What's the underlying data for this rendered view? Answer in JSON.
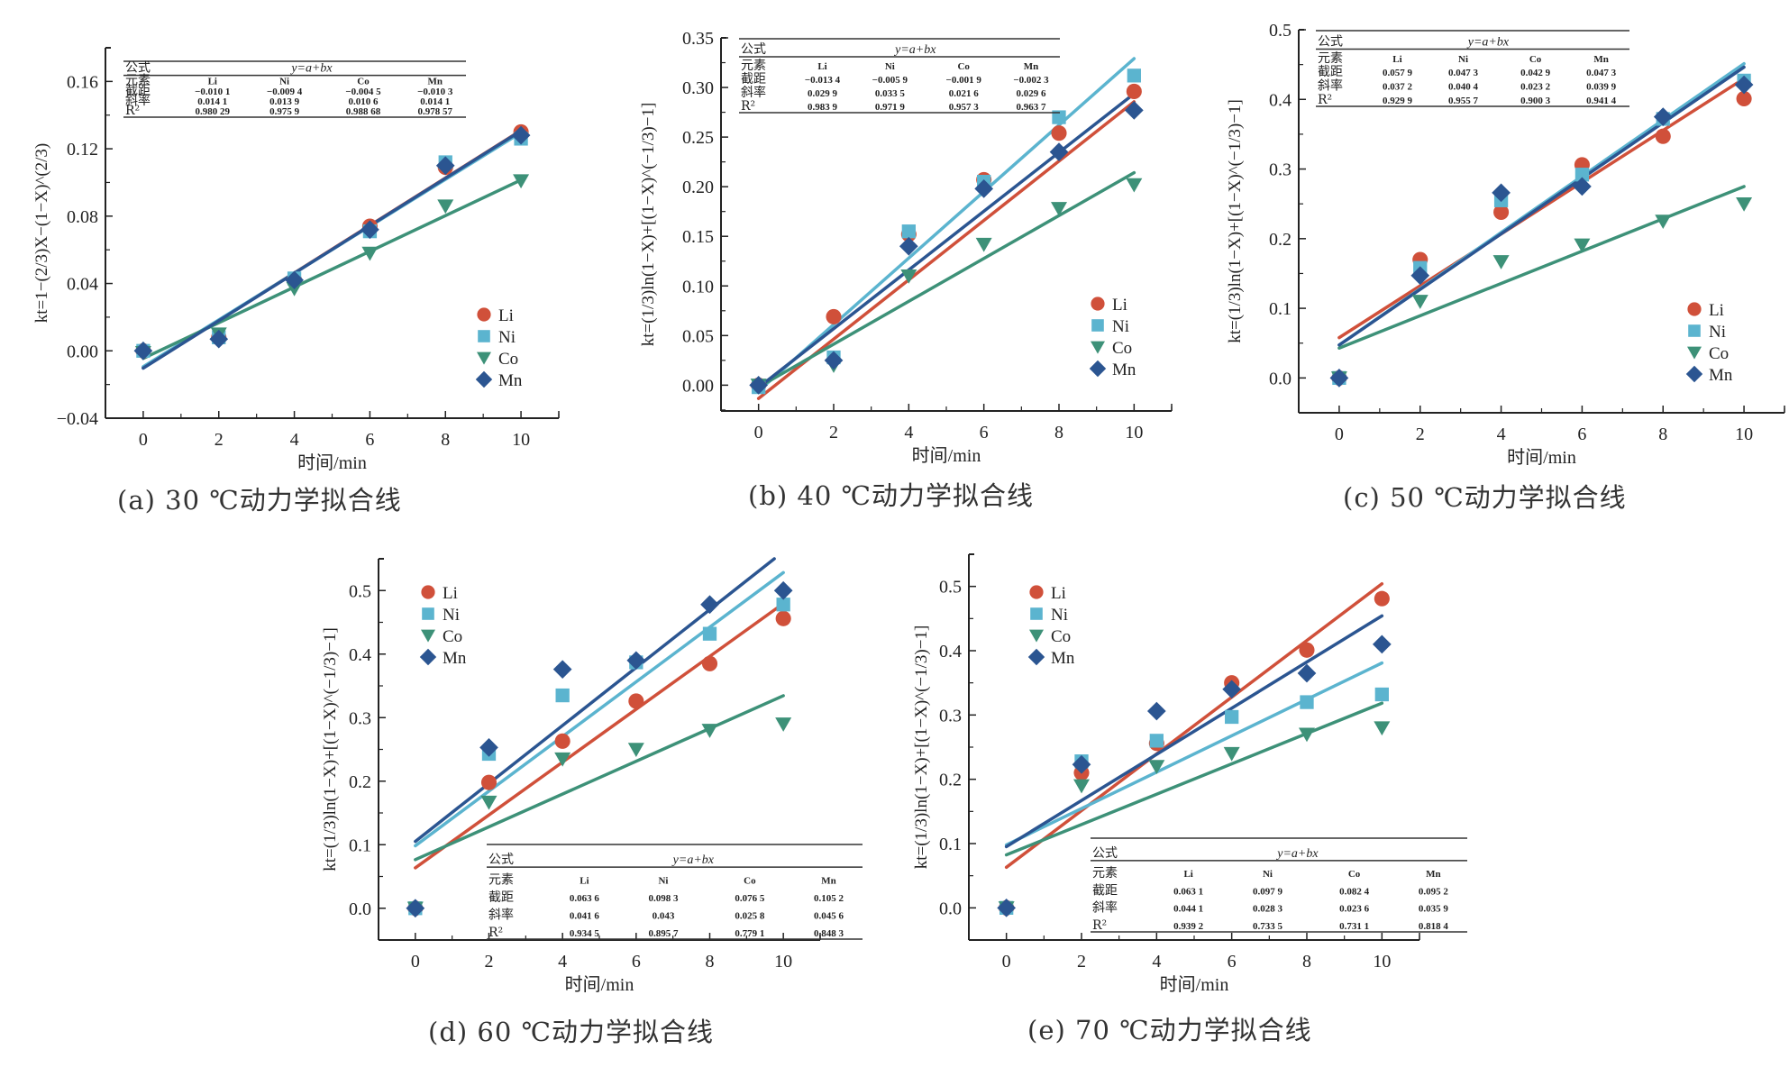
{
  "colors": {
    "Li": "#d0503a",
    "Ni": "#5bb4cf",
    "Co": "#3d9178",
    "Mn": "#2b5591",
    "axis": "#222222"
  },
  "chart_data": [
    {
      "id": "a",
      "type": "scatter",
      "caption": "(a) 30 ℃动力学拟合线",
      "xlabel": "时间/min",
      "ylabel": "kt=1−(2/3)X−(1−X)^(2/3)",
      "x": [
        0,
        2,
        4,
        6,
        8,
        10
      ],
      "xticks": [
        "0",
        "2",
        "4",
        "6",
        "8",
        "10"
      ],
      "xlim": [
        -1,
        11
      ],
      "ylim": [
        -0.04,
        0.18
      ],
      "yticks": [
        -0.04,
        0.0,
        0.04,
        0.08,
        0.12,
        0.16
      ],
      "ytick_labels": [
        "−0.04",
        "0.00",
        "0.04",
        "0.08",
        "0.12",
        "0.16"
      ],
      "legend_position": "bottom-right",
      "table_position": "top",
      "series": [
        {
          "name": "Li",
          "marker": "circle",
          "values": [
            0.0,
            0.008,
            0.042,
            0.074,
            0.109,
            0.13
          ],
          "fit": {
            "intercept": -0.0101,
            "slope": 0.0141,
            "r2": "0.980 29"
          }
        },
        {
          "name": "Ni",
          "marker": "square",
          "values": [
            0.0,
            0.008,
            0.043,
            0.071,
            0.112,
            0.126
          ],
          "fit": {
            "intercept": -0.0094,
            "slope": 0.0139,
            "r2": "0.975 9"
          }
        },
        {
          "name": "Co",
          "marker": "triangle",
          "values": [
            -0.001,
            0.01,
            0.037,
            0.058,
            0.086,
            0.101
          ],
          "fit": {
            "intercept": -0.0045,
            "slope": 0.0106,
            "r2": "0.988 68"
          }
        },
        {
          "name": "Mn",
          "marker": "diamond",
          "values": [
            0.0,
            0.007,
            0.042,
            0.072,
            0.11,
            0.128
          ],
          "fit": {
            "intercept": -0.0103,
            "slope": 0.0141,
            "r2": "0.978 57"
          }
        }
      ],
      "table": {
        "formula_label": "公式",
        "formula": "y=a+bx",
        "rows": [
          {
            "label": "元素",
            "values": [
              "Li",
              "Ni",
              "Co",
              "Mn"
            ]
          },
          {
            "label": "截距",
            "values": [
              "−0.010 1",
              "−0.009 4",
              "−0.004 5",
              "−0.010 3"
            ]
          },
          {
            "label": "斜率",
            "values": [
              "0.014 1",
              "0.013 9",
              "0.010 6",
              "0.014 1"
            ]
          },
          {
            "label": "R²",
            "values": [
              "0.980 29",
              "0.975 9",
              "0.988 68",
              "0.978 57"
            ]
          }
        ]
      }
    },
    {
      "id": "b",
      "type": "scatter",
      "caption": "(b) 40 ℃动力学拟合线",
      "xlabel": "时间/min",
      "ylabel": "kt=(1/3)ln(1−X)+[(1−X)^(−1/3)−1]",
      "x": [
        0,
        2,
        4,
        6,
        8,
        10
      ],
      "xticks": [
        "0",
        "2",
        "4",
        "6",
        "8",
        "10"
      ],
      "xlim": [
        -1,
        11
      ],
      "ylim": [
        -0.026,
        0.35
      ],
      "yticks": [
        0.0,
        0.05,
        0.1,
        0.15,
        0.2,
        0.25,
        0.3,
        0.35
      ],
      "ytick_labels": [
        "0.00",
        "0.05",
        "0.10",
        "0.15",
        "0.20",
        "0.25",
        "0.30",
        "0.35"
      ],
      "legend_position": "bottom-right",
      "table_position": "top",
      "series": [
        {
          "name": "Li",
          "marker": "circle",
          "values": [
            0.0,
            0.069,
            0.152,
            0.207,
            0.254,
            0.296
          ],
          "fit": {
            "intercept": -0.0134,
            "slope": 0.0299,
            "r2": "0.983 9"
          }
        },
        {
          "name": "Ni",
          "marker": "square",
          "values": [
            -0.002,
            0.028,
            0.155,
            0.205,
            0.27,
            0.312
          ],
          "fit": {
            "intercept": -0.0059,
            "slope": 0.0335,
            "r2": "0.971 9"
          }
        },
        {
          "name": "Co",
          "marker": "triangle",
          "values": [
            0.0,
            0.02,
            0.11,
            0.142,
            0.178,
            0.202
          ],
          "fit": {
            "intercept": -0.0019,
            "slope": 0.0216,
            "r2": "0.957 3"
          }
        },
        {
          "name": "Mn",
          "marker": "diamond",
          "values": [
            0.0,
            0.025,
            0.14,
            0.198,
            0.235,
            0.277
          ],
          "fit": {
            "intercept": -0.0023,
            "slope": 0.0296,
            "r2": "0.963 7"
          }
        }
      ],
      "table": {
        "formula_label": "公式",
        "formula": "y=a+bx",
        "rows": [
          {
            "label": "元素",
            "values": [
              "Li",
              "Ni",
              "Co",
              "Mn"
            ]
          },
          {
            "label": "截距",
            "values": [
              "−0.013 4",
              "−0.005 9",
              "−0.001 9",
              "−0.002 3"
            ]
          },
          {
            "label": "斜率",
            "values": [
              "0.029 9",
              "0.033 5",
              "0.021 6",
              "0.029 6"
            ]
          },
          {
            "label": "R²",
            "values": [
              "0.983 9",
              "0.971 9",
              "0.957 3",
              "0.963 7"
            ]
          }
        ]
      }
    },
    {
      "id": "c",
      "type": "scatter",
      "caption": "(c) 50 ℃动力学拟合线",
      "xlabel": "时间/min",
      "ylabel": "kt=(1/3)ln(1−X)+[(1−X)^(−1/3)−1]",
      "x": [
        0,
        2,
        4,
        6,
        8,
        10
      ],
      "xticks": [
        "0",
        "2",
        "4",
        "6",
        "8",
        "10"
      ],
      "xlim": [
        -1,
        11
      ],
      "ylim": [
        -0.05,
        0.5
      ],
      "yticks": [
        0.0,
        0.1,
        0.2,
        0.3,
        0.4,
        0.5
      ],
      "ytick_labels": [
        "0.0",
        "0.1",
        "0.2",
        "0.3",
        "0.4",
        "0.5"
      ],
      "legend_position": "bottom-right",
      "table_position": "top",
      "series": [
        {
          "name": "Li",
          "marker": "circle",
          "values": [
            0.0,
            0.17,
            0.238,
            0.306,
            0.347,
            0.401
          ],
          "fit": {
            "intercept": 0.0579,
            "slope": 0.0372,
            "r2": "0.929 9"
          }
        },
        {
          "name": "Ni",
          "marker": "square",
          "values": [
            0.0,
            0.158,
            0.255,
            0.292,
            0.372,
            0.427
          ],
          "fit": {
            "intercept": 0.0473,
            "slope": 0.0404,
            "r2": "0.955 7"
          }
        },
        {
          "name": "Co",
          "marker": "triangle",
          "values": [
            0.0,
            0.11,
            0.167,
            0.191,
            0.225,
            0.25
          ],
          "fit": {
            "intercept": 0.0429,
            "slope": 0.0232,
            "r2": "0.900 3"
          }
        },
        {
          "name": "Mn",
          "marker": "diamond",
          "values": [
            0.0,
            0.147,
            0.266,
            0.275,
            0.375,
            0.421
          ],
          "fit": {
            "intercept": 0.0473,
            "slope": 0.0399,
            "r2": "0.941 4"
          }
        }
      ],
      "table": {
        "formula_label": "公式",
        "formula": "y=a+bx",
        "rows": [
          {
            "label": "元素",
            "values": [
              "Li",
              "Ni",
              "Co",
              "Mn"
            ]
          },
          {
            "label": "截距",
            "values": [
              "0.057 9",
              "0.047 3",
              "0.042 9",
              "0.047 3"
            ]
          },
          {
            "label": "斜率",
            "values": [
              "0.037 2",
              "0.040 4",
              "0.023 2",
              "0.039 9"
            ]
          },
          {
            "label": "R²",
            "values": [
              "0.929 9",
              "0.955 7",
              "0.900 3",
              "0.941 4"
            ]
          }
        ]
      }
    },
    {
      "id": "d",
      "type": "scatter",
      "caption": "(d) 60 ℃动力学拟合线",
      "xlabel": "时间/min",
      "ylabel": "kt=(1/3)ln(1−X)+[(1−X)^(−1/3)−1]",
      "x": [
        0,
        2,
        4,
        6,
        8,
        10
      ],
      "xticks": [
        "0",
        "2",
        "4",
        "6",
        "8",
        "10"
      ],
      "xlim": [
        -1,
        11
      ],
      "ylim": [
        -0.05,
        0.55
      ],
      "yticks": [
        0.0,
        0.1,
        0.2,
        0.3,
        0.4,
        0.5
      ],
      "ytick_labels": [
        "0.0",
        "0.1",
        "0.2",
        "0.3",
        "0.4",
        "0.5"
      ],
      "legend_position": "top-left",
      "table_position": "bottom-right",
      "series": [
        {
          "name": "Li",
          "marker": "circle",
          "values": [
            0.0,
            0.198,
            0.263,
            0.326,
            0.385,
            0.456
          ],
          "fit": {
            "intercept": 0.0636,
            "slope": 0.0416,
            "r2": "0.934 5"
          }
        },
        {
          "name": "Ni",
          "marker": "square",
          "values": [
            0.0,
            0.243,
            0.335,
            0.387,
            0.432,
            0.478
          ],
          "fit": {
            "intercept": 0.0983,
            "slope": 0.043,
            "r2": "0.895 7"
          }
        },
        {
          "name": "Co",
          "marker": "triangle",
          "values": [
            0.0,
            0.167,
            0.235,
            0.25,
            0.28,
            0.29
          ],
          "fit": {
            "intercept": 0.0765,
            "slope": 0.0258,
            "r2": "0.779 1"
          }
        },
        {
          "name": "Mn",
          "marker": "diamond",
          "values": [
            0.0,
            0.253,
            0.376,
            0.39,
            0.478,
            0.5
          ],
          "fit": {
            "intercept": 0.1052,
            "slope": 0.0456,
            "r2": "0.848 3"
          }
        }
      ],
      "table": {
        "formula_label": "公式",
        "formula": "y=a+bx",
        "rows": [
          {
            "label": "元素",
            "values": [
              "Li",
              "Ni",
              "Co",
              "Mn"
            ]
          },
          {
            "label": "截距",
            "values": [
              "0.063 6",
              "0.098 3",
              "0.076 5",
              "0.105 2"
            ]
          },
          {
            "label": "斜率",
            "values": [
              "0.041 6",
              "0.043",
              "0.025 8",
              "0.045 6"
            ]
          },
          {
            "label": "R²",
            "values": [
              "0.934 5",
              "0.895 7",
              "0.779 1",
              "0.848 3"
            ]
          }
        ]
      }
    },
    {
      "id": "e",
      "type": "scatter",
      "caption": "(e) 70 ℃动力学拟合线",
      "xlabel": "时间/min",
      "ylabel": "kt=(1/3)ln(1−X)+[(1−X)^(−1/3)−1]",
      "x": [
        0,
        2,
        4,
        6,
        8,
        10
      ],
      "xticks": [
        "0",
        "2",
        "4",
        "6",
        "8",
        "10"
      ],
      "xlim": [
        -1,
        11
      ],
      "ylim": [
        -0.05,
        0.55
      ],
      "yticks": [
        0.0,
        0.1,
        0.2,
        0.3,
        0.4,
        0.5
      ],
      "ytick_labels": [
        "0.0",
        "0.1",
        "0.2",
        "0.3",
        "0.4",
        "0.5"
      ],
      "legend_position": "top-left",
      "table_position": "bottom-right",
      "series": [
        {
          "name": "Li",
          "marker": "circle",
          "values": [
            0.0,
            0.21,
            0.256,
            0.35,
            0.401,
            0.481
          ],
          "fit": {
            "intercept": 0.0631,
            "slope": 0.0441,
            "r2": "0.939 2"
          }
        },
        {
          "name": "Ni",
          "marker": "square",
          "values": [
            0.0,
            0.228,
            0.26,
            0.297,
            0.32,
            0.332
          ],
          "fit": {
            "intercept": 0.0979,
            "slope": 0.0283,
            "r2": "0.733 5"
          }
        },
        {
          "name": "Co",
          "marker": "triangle",
          "values": [
            0.0,
            0.19,
            0.22,
            0.24,
            0.27,
            0.28
          ],
          "fit": {
            "intercept": 0.0824,
            "slope": 0.0236,
            "r2": "0.731 1"
          }
        },
        {
          "name": "Mn",
          "marker": "diamond",
          "values": [
            0.0,
            0.223,
            0.306,
            0.34,
            0.365,
            0.41
          ],
          "fit": {
            "intercept": 0.0952,
            "slope": 0.0359,
            "r2": "0.818 4"
          }
        }
      ],
      "table": {
        "formula_label": "公式",
        "formula": "y=a+bx",
        "rows": [
          {
            "label": "元素",
            "values": [
              "Li",
              "Ni",
              "Co",
              "Mn"
            ]
          },
          {
            "label": "截距",
            "values": [
              "0.063 1",
              "0.097 9",
              "0.082 4",
              "0.095 2"
            ]
          },
          {
            "label": "斜率",
            "values": [
              "0.044 1",
              "0.028 3",
              "0.023 6",
              "0.035 9"
            ]
          },
          {
            "label": "R²",
            "values": [
              "0.939 2",
              "0.733 5",
              "0.731 1",
              "0.818 4"
            ]
          }
        ]
      }
    }
  ]
}
